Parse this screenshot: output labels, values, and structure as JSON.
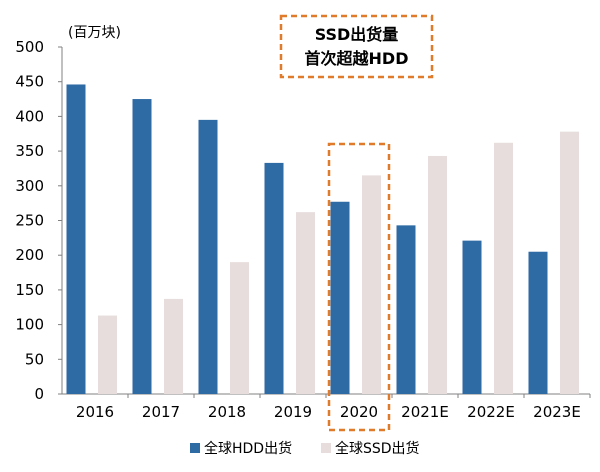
{
  "chart_data": {
    "type": "bar",
    "title": "",
    "xlabel": "",
    "ylabel": "(百万块)",
    "ylim": [
      0,
      500
    ],
    "yticks": [
      0,
      50,
      100,
      150,
      200,
      250,
      300,
      350,
      400,
      450,
      500
    ],
    "grid": false,
    "legend_position": "bottom",
    "categories": [
      "2016",
      "2017",
      "2018",
      "2019",
      "2020",
      "2021E",
      "2022E",
      "2023E"
    ],
    "series": [
      {
        "name": "全球HDD出货",
        "color": "#2E6AA4",
        "values": [
          446,
          425,
          395,
          333,
          277,
          243,
          221,
          205
        ]
      },
      {
        "name": "全球SSD出货",
        "color": "#E6DDDC",
        "values": [
          113,
          137,
          190,
          262,
          315,
          343,
          362,
          378
        ]
      }
    ],
    "annotation": {
      "lines": [
        "SSD出货量",
        "首次超越HDD"
      ],
      "border_color": "#E07B2C",
      "highlight_category": "2020"
    }
  }
}
